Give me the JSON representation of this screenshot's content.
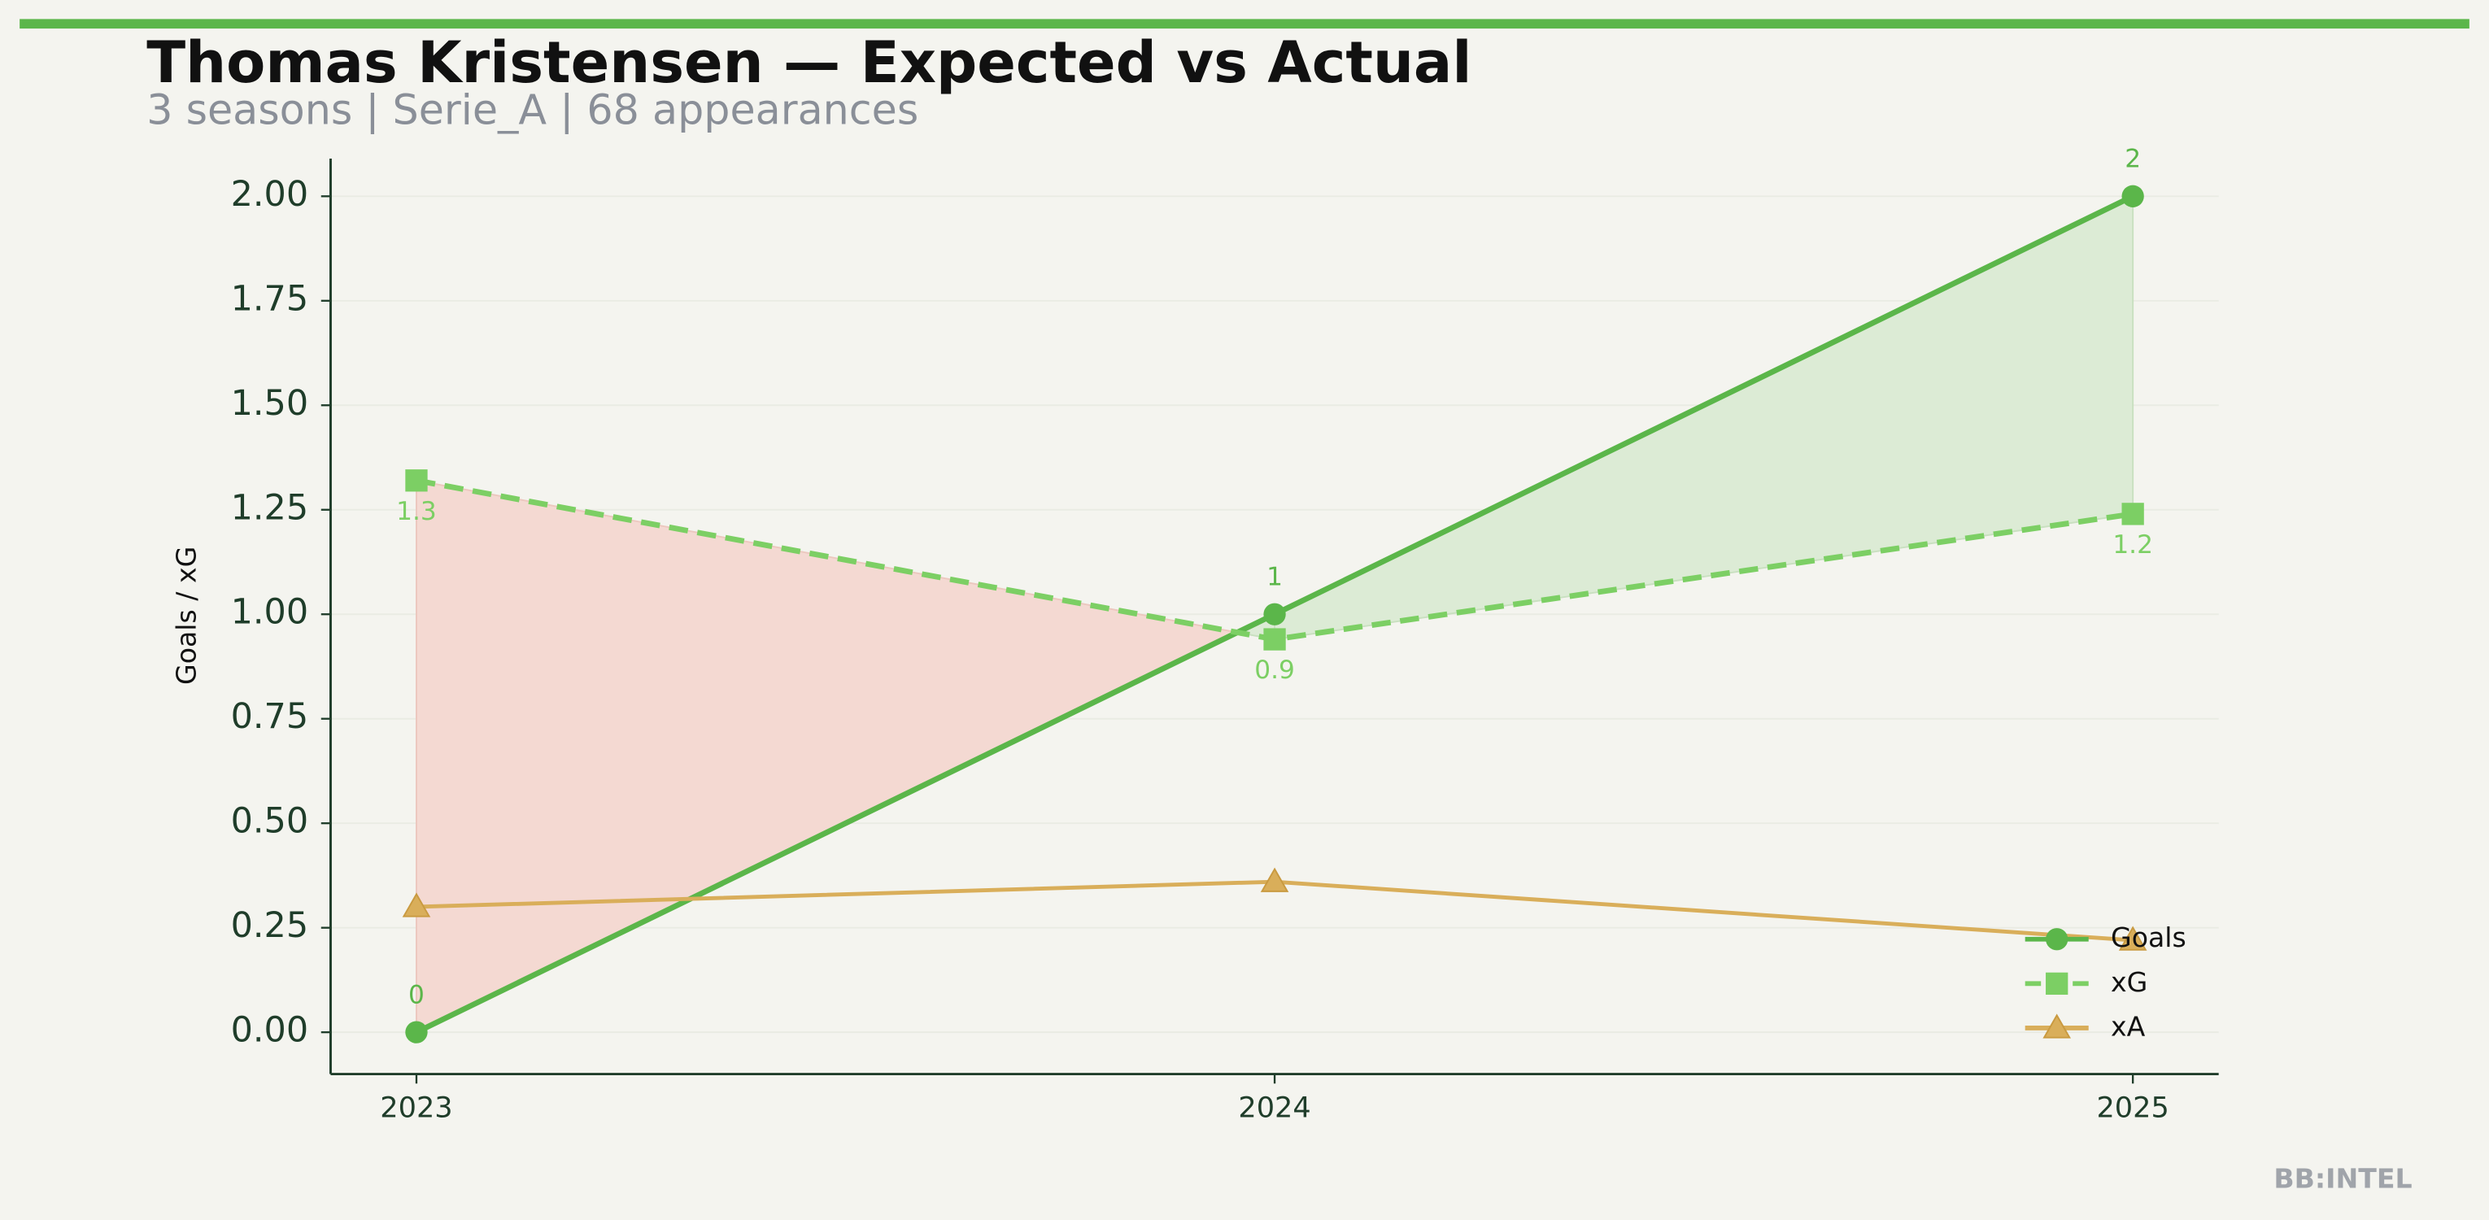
{
  "chart_data": {
    "type": "line",
    "title": "Thomas Kristensen — Expected vs Actual",
    "subtitle": "3 seasons | Serie_A | 68 appearances",
    "y_label": "Goals / xG",
    "watermark": "BB:INTEL",
    "x": [
      2023,
      2024,
      2025
    ],
    "xlim": [
      2022.9,
      2025.1
    ],
    "xticks": [
      2023,
      2024,
      2025
    ],
    "ylim": [
      -0.1,
      2.09
    ],
    "yticks": [
      {
        "value": 0,
        "label": "0.00"
      },
      {
        "value": 0.25,
        "label": "0.25"
      },
      {
        "value": 0.5,
        "label": "0.50"
      },
      {
        "value": 0.75,
        "label": "0.75"
      },
      {
        "value": 1,
        "label": "1.00"
      },
      {
        "value": 1.25,
        "label": "1.25"
      },
      {
        "value": 1.5,
        "label": "1.50"
      },
      {
        "value": 1.75,
        "label": "1.75"
      },
      {
        "value": 2,
        "label": "2.00"
      }
    ],
    "grid": true,
    "legend": "lower right",
    "series": [
      {
        "name": "Goals",
        "color": "#5bb64a",
        "linestyle": "solid",
        "marker": "circle",
        "values": [
          0,
          1,
          2
        ],
        "show_labels": true
      },
      {
        "name": "xG",
        "color": "#7ccf64",
        "linestyle": "dashed",
        "marker": "square",
        "values": [
          1.32,
          0.94,
          1.24
        ],
        "value_labels": [
          "1.3",
          "0.9",
          "1.2"
        ]
      },
      {
        "name": "xA",
        "color": "#d9ae5a",
        "linestyle": "solid",
        "marker": "triangle",
        "values": [
          0.3,
          0.36,
          0.22
        ]
      }
    ],
    "shade_colors": {
      "above": "#dcebd5",
      "below": "#f4d9d2"
    }
  }
}
